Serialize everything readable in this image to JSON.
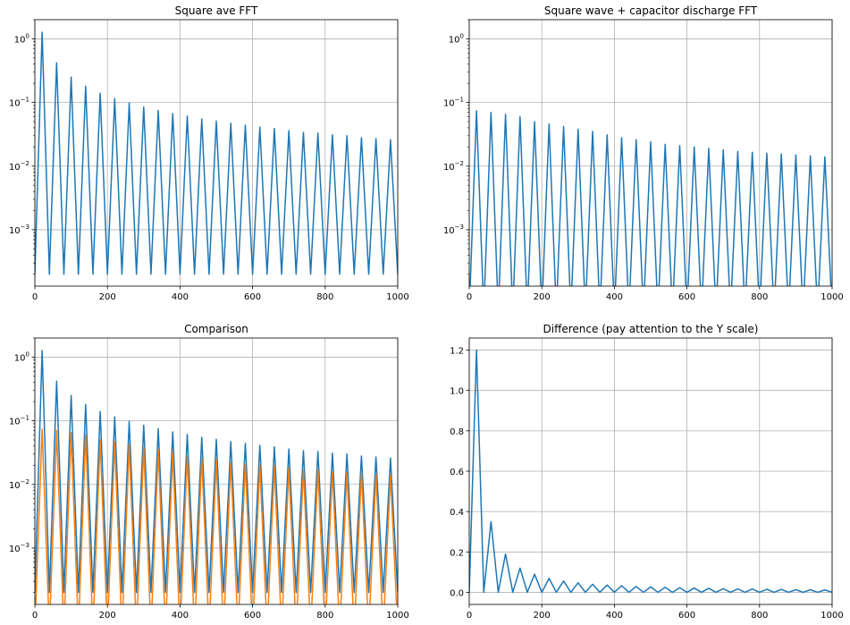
{
  "chart_data": [
    {
      "type": "line",
      "title": "Square ave FFT",
      "xlabel": "",
      "ylabel": "",
      "yscale": "log",
      "xlim": [
        0,
        1000
      ],
      "ylim": [
        0.00013,
        2.0
      ],
      "grid": true,
      "x_ticks": [
        "0",
        "200",
        "400",
        "600",
        "800",
        "1000"
      ],
      "y_ticks": [
        {
          "base": "10",
          "exp": "0",
          "value": 1
        },
        {
          "base": "10",
          "exp": "−1",
          "value": 0.1
        },
        {
          "base": "10",
          "exp": "−2",
          "value": 0.01
        },
        {
          "base": "10",
          "exp": "−3",
          "value": 0.001
        }
      ],
      "series": [
        {
          "color": "#1f77b4",
          "x": [
            0,
            20,
            40,
            60,
            80,
            100,
            120,
            140,
            160,
            180,
            200,
            220,
            240,
            260,
            280,
            300,
            320,
            340,
            360,
            380,
            400,
            420,
            440,
            460,
            480,
            500,
            520,
            540,
            560,
            580,
            600,
            620,
            640,
            660,
            680,
            700,
            720,
            740,
            760,
            780,
            800,
            820,
            840,
            860,
            880,
            900,
            920,
            940,
            960,
            980,
            1000
          ],
          "y": [
            0.0002,
            1.27,
            0.0002,
            0.42,
            0.0002,
            0.25,
            0.0002,
            0.18,
            0.0002,
            0.14,
            0.0002,
            0.115,
            0.0002,
            0.098,
            0.0002,
            0.085,
            0.0002,
            0.075,
            0.0002,
            0.067,
            0.0002,
            0.061,
            0.0002,
            0.055,
            0.0002,
            0.051,
            0.0002,
            0.047,
            0.0002,
            0.044,
            0.0002,
            0.041,
            0.0002,
            0.039,
            0.0002,
            0.036,
            0.0002,
            0.034,
            0.0002,
            0.033,
            0.0002,
            0.031,
            0.0002,
            0.03,
            0.0002,
            0.028,
            0.0002,
            0.027,
            0.0002,
            0.026,
            0.0002
          ]
        }
      ]
    },
    {
      "type": "line",
      "title": "Square wave + capacitor discharge FFT",
      "xlabel": "",
      "ylabel": "",
      "yscale": "log",
      "xlim": [
        0,
        1000
      ],
      "ylim": [
        0.00013,
        2.0
      ],
      "grid": true,
      "x_ticks": [
        "0",
        "200",
        "400",
        "600",
        "800",
        "1000"
      ],
      "y_ticks": [
        {
          "base": "10",
          "exp": "0",
          "value": 1
        },
        {
          "base": "10",
          "exp": "−1",
          "value": 0.1
        },
        {
          "base": "10",
          "exp": "−2",
          "value": 0.01
        },
        {
          "base": "10",
          "exp": "−3",
          "value": 0.001
        }
      ],
      "series": [
        {
          "color": "#1f77b4",
          "x": [
            0,
            20,
            40,
            60,
            80,
            100,
            120,
            140,
            160,
            180,
            200,
            220,
            240,
            260,
            280,
            300,
            320,
            340,
            360,
            380,
            400,
            420,
            440,
            460,
            480,
            500,
            520,
            540,
            560,
            580,
            600,
            620,
            640,
            660,
            680,
            700,
            720,
            740,
            760,
            780,
            800,
            820,
            840,
            860,
            880,
            900,
            920,
            940,
            960,
            980,
            1000
          ],
          "y": [
            5e-05,
            0.074,
            5e-05,
            0.07,
            5e-05,
            0.065,
            5e-05,
            0.06,
            5e-05,
            0.05,
            5e-05,
            0.046,
            5e-05,
            0.042,
            5e-05,
            0.038,
            5e-05,
            0.035,
            5e-05,
            0.031,
            5e-05,
            0.028,
            5e-05,
            0.026,
            5e-05,
            0.024,
            5e-05,
            0.022,
            5e-05,
            0.021,
            5e-05,
            0.02,
            5e-05,
            0.019,
            5e-05,
            0.018,
            5e-05,
            0.017,
            5e-05,
            0.0165,
            5e-05,
            0.016,
            5e-05,
            0.0155,
            5e-05,
            0.015,
            5e-05,
            0.0145,
            5e-05,
            0.014,
            5e-05
          ]
        }
      ]
    },
    {
      "type": "line",
      "title": "Comparison",
      "xlabel": "",
      "ylabel": "",
      "yscale": "log",
      "xlim": [
        0,
        1000
      ],
      "ylim": [
        0.00013,
        2.0
      ],
      "grid": true,
      "x_ticks": [
        "0",
        "200",
        "400",
        "600",
        "800",
        "1000"
      ],
      "y_ticks": [
        {
          "base": "10",
          "exp": "0",
          "value": 1
        },
        {
          "base": "10",
          "exp": "−1",
          "value": 0.1
        },
        {
          "base": "10",
          "exp": "−2",
          "value": 0.01
        },
        {
          "base": "10",
          "exp": "−3",
          "value": 0.001
        }
      ],
      "series": [
        {
          "color": "#1f77b4",
          "x": [
            0,
            20,
            40,
            60,
            80,
            100,
            120,
            140,
            160,
            180,
            200,
            220,
            240,
            260,
            280,
            300,
            320,
            340,
            360,
            380,
            400,
            420,
            440,
            460,
            480,
            500,
            520,
            540,
            560,
            580,
            600,
            620,
            640,
            660,
            680,
            700,
            720,
            740,
            760,
            780,
            800,
            820,
            840,
            860,
            880,
            900,
            920,
            940,
            960,
            980,
            1000
          ],
          "y": [
            0.0002,
            1.27,
            0.0002,
            0.42,
            0.0002,
            0.25,
            0.0002,
            0.18,
            0.0002,
            0.14,
            0.0002,
            0.115,
            0.0002,
            0.098,
            0.0002,
            0.085,
            0.0002,
            0.075,
            0.0002,
            0.067,
            0.0002,
            0.061,
            0.0002,
            0.055,
            0.0002,
            0.051,
            0.0002,
            0.047,
            0.0002,
            0.044,
            0.0002,
            0.041,
            0.0002,
            0.039,
            0.0002,
            0.036,
            0.0002,
            0.034,
            0.0002,
            0.033,
            0.0002,
            0.031,
            0.0002,
            0.03,
            0.0002,
            0.028,
            0.0002,
            0.027,
            0.0002,
            0.026,
            0.0002
          ]
        },
        {
          "color": "#ff7f0e",
          "x": [
            0,
            20,
            40,
            60,
            80,
            100,
            120,
            140,
            160,
            180,
            200,
            220,
            240,
            260,
            280,
            300,
            320,
            340,
            360,
            380,
            400,
            420,
            440,
            460,
            480,
            500,
            520,
            540,
            560,
            580,
            600,
            620,
            640,
            660,
            680,
            700,
            720,
            740,
            760,
            780,
            800,
            820,
            840,
            860,
            880,
            900,
            920,
            940,
            960,
            980,
            1000
          ],
          "y": [
            5e-05,
            0.074,
            5e-05,
            0.07,
            5e-05,
            0.065,
            5e-05,
            0.06,
            5e-05,
            0.05,
            5e-05,
            0.046,
            5e-05,
            0.042,
            5e-05,
            0.038,
            5e-05,
            0.035,
            5e-05,
            0.031,
            5e-05,
            0.028,
            5e-05,
            0.026,
            5e-05,
            0.024,
            5e-05,
            0.022,
            5e-05,
            0.021,
            5e-05,
            0.02,
            5e-05,
            0.019,
            5e-05,
            0.018,
            5e-05,
            0.017,
            5e-05,
            0.0165,
            5e-05,
            0.016,
            5e-05,
            0.0155,
            5e-05,
            0.015,
            5e-05,
            0.0145,
            5e-05,
            0.014,
            5e-05
          ]
        }
      ]
    },
    {
      "type": "line",
      "title": "Difference (pay attention to the Y scale)",
      "xlabel": "",
      "ylabel": "",
      "yscale": "linear",
      "xlim": [
        0,
        1000
      ],
      "ylim": [
        -0.06,
        1.26
      ],
      "grid": true,
      "x_ticks": [
        "0",
        "200",
        "400",
        "600",
        "800",
        "1000"
      ],
      "y_ticks": [
        {
          "label": "0.0",
          "value": 0.0
        },
        {
          "label": "0.2",
          "value": 0.2
        },
        {
          "label": "0.4",
          "value": 0.4
        },
        {
          "label": "0.6",
          "value": 0.6
        },
        {
          "label": "0.8",
          "value": 0.8
        },
        {
          "label": "1.0",
          "value": 1.0
        },
        {
          "label": "1.2",
          "value": 1.2
        }
      ],
      "series": [
        {
          "color": "#1f77b4",
          "x": [
            0,
            20,
            40,
            60,
            80,
            100,
            120,
            140,
            160,
            180,
            200,
            220,
            240,
            260,
            280,
            300,
            320,
            340,
            360,
            380,
            400,
            420,
            440,
            460,
            480,
            500,
            520,
            540,
            560,
            580,
            600,
            620,
            640,
            660,
            680,
            700,
            720,
            740,
            760,
            780,
            800,
            820,
            840,
            860,
            880,
            900,
            920,
            940,
            960,
            980,
            1000
          ],
          "y": [
            0.0,
            1.2,
            0.0,
            0.35,
            0.0,
            0.19,
            0.0,
            0.12,
            0.0,
            0.09,
            0.0,
            0.069,
            0.0,
            0.056,
            0.0,
            0.047,
            0.0,
            0.04,
            0.0,
            0.036,
            0.0,
            0.033,
            0.0,
            0.029,
            0.0,
            0.027,
            0.0,
            0.025,
            0.0,
            0.023,
            0.0,
            0.021,
            0.0,
            0.02,
            0.0,
            0.018,
            0.0,
            0.017,
            0.0,
            0.0165,
            0.0,
            0.015,
            0.0,
            0.0145,
            0.0,
            0.013,
            0.0,
            0.0125,
            0.0,
            0.012,
            0.0
          ]
        }
      ]
    }
  ]
}
